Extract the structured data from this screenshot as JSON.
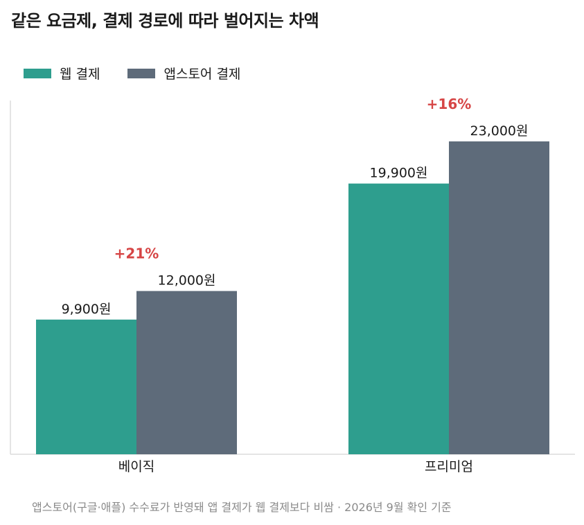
{
  "chart_data": {
    "type": "bar",
    "title": "같은 요금제, 결제 경로에 따라 벌어지는 차액",
    "categories": [
      "베이직",
      "프리미엄"
    ],
    "series": [
      {
        "name": "웹 결제",
        "color": "#2E9E8E",
        "values": [
          9900,
          19900
        ],
        "labels": [
          "9,900원",
          "19,900원"
        ]
      },
      {
        "name": "앱스토어 결제",
        "color": "#5E6B7A",
        "values": [
          12000,
          23000
        ],
        "labels": [
          "12,000원",
          "23,000원"
        ]
      }
    ],
    "annotations": [
      "+21%",
      "+16%"
    ],
    "annotation_color": "#D64545",
    "ylim": [
      0,
      26000
    ],
    "grid": false,
    "legend": "top-left",
    "footnote": "앱스토어(구글·애플) 수수료가 반영돼 앱 결제가 웹 결제보다 비쌈 · 2026년 9월 확인 기준"
  }
}
